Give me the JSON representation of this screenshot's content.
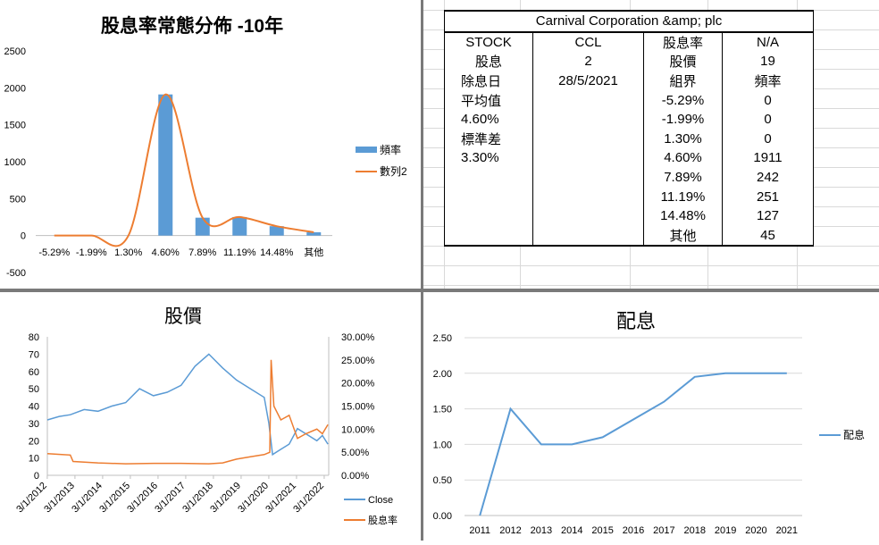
{
  "colors": {
    "blue": "#5B9BD5",
    "orange": "#ED7D31",
    "grid": "#d9d9d9",
    "axis": "#bfbfbf"
  },
  "chart_data": [
    {
      "id": "dist",
      "type": "bar",
      "title": "股息率常態分佈 -10年",
      "categories": [
        "-5.29%",
        "-1.99%",
        "1.30%",
        "4.60%",
        "7.89%",
        "11.19%",
        "14.48%",
        "其他"
      ],
      "series": [
        {
          "name": "頻率",
          "type": "bar",
          "values": [
            0,
            0,
            0,
            1911,
            242,
            251,
            127,
            45
          ]
        },
        {
          "name": "數列2",
          "type": "smooth-line",
          "values": [
            0,
            0,
            0,
            1911,
            242,
            251,
            127,
            45
          ]
        }
      ],
      "ylim": [
        -500,
        2500
      ],
      "yticks": [
        "-500",
        "0",
        "500",
        "1000",
        "1500",
        "2000",
        "2500"
      ],
      "grid": false,
      "legend": "right"
    },
    {
      "id": "price",
      "type": "line",
      "title": "股價",
      "x_ticks": [
        "3/1/2012",
        "3/1/2013",
        "3/1/2014",
        "3/1/2015",
        "3/1/2016",
        "3/1/2017",
        "3/1/2018",
        "3/1/2019",
        "3/1/2020",
        "3/1/2021",
        "3/1/2022"
      ],
      "y_ticks_left": [
        "0",
        "10",
        "20",
        "30",
        "40",
        "50",
        "60",
        "70",
        "80"
      ],
      "y_ticks_right": [
        "0.00%",
        "5.00%",
        "10.00%",
        "15.00%",
        "20.00%",
        "25.00%",
        "30.00%"
      ],
      "ylim_left": [
        0,
        80
      ],
      "ylim_right": [
        0,
        0.3
      ],
      "series": [
        {
          "name": "Close",
          "axis": "left",
          "points": [
            [
              2012.17,
              32
            ],
            [
              2012.6,
              34
            ],
            [
              2013.0,
              35
            ],
            [
              2013.5,
              38
            ],
            [
              2014.0,
              37
            ],
            [
              2014.5,
              40
            ],
            [
              2015.0,
              42
            ],
            [
              2015.5,
              50
            ],
            [
              2016.0,
              46
            ],
            [
              2016.5,
              48
            ],
            [
              2017.0,
              52
            ],
            [
              2017.5,
              63
            ],
            [
              2018.0,
              70
            ],
            [
              2018.5,
              62
            ],
            [
              2019.0,
              55
            ],
            [
              2019.5,
              50
            ],
            [
              2020.0,
              45
            ],
            [
              2020.17,
              30
            ],
            [
              2020.3,
              12
            ],
            [
              2020.6,
              15
            ],
            [
              2020.9,
              18
            ],
            [
              2021.2,
              27
            ],
            [
              2021.5,
              24
            ],
            [
              2021.9,
              20
            ],
            [
              2022.1,
              23
            ],
            [
              2022.3,
              18
            ]
          ]
        },
        {
          "name": "股息率",
          "axis": "right",
          "points": [
            [
              2012.17,
              0.047
            ],
            [
              2012.7,
              0.045
            ],
            [
              2013.0,
              0.044
            ],
            [
              2013.1,
              0.03
            ],
            [
              2014.0,
              0.027
            ],
            [
              2015.0,
              0.025
            ],
            [
              2016.0,
              0.026
            ],
            [
              2017.0,
              0.026
            ],
            [
              2018.0,
              0.025
            ],
            [
              2018.5,
              0.027
            ],
            [
              2019.0,
              0.035
            ],
            [
              2019.5,
              0.04
            ],
            [
              2020.0,
              0.045
            ],
            [
              2020.2,
              0.05
            ],
            [
              2020.25,
              0.25
            ],
            [
              2020.35,
              0.15
            ],
            [
              2020.6,
              0.12
            ],
            [
              2020.9,
              0.13
            ],
            [
              2021.2,
              0.08
            ],
            [
              2021.5,
              0.09
            ],
            [
              2021.9,
              0.1
            ],
            [
              2022.1,
              0.09
            ],
            [
              2022.3,
              0.11
            ]
          ]
        }
      ],
      "legend": "right"
    },
    {
      "id": "div",
      "type": "line",
      "title": "配息",
      "categories": [
        "2011",
        "2012",
        "2013",
        "2014",
        "2015",
        "2016",
        "2017",
        "2018",
        "2019",
        "2020",
        "2021"
      ],
      "series": [
        {
          "name": "配息",
          "values": [
            0,
            1.5,
            1.0,
            1.0,
            1.1,
            1.35,
            1.6,
            1.95,
            2.0,
            2.0,
            2.0
          ]
        }
      ],
      "ylim": [
        0,
        2.5
      ],
      "yticks": [
        "0.00",
        "0.50",
        "1.00",
        "1.50",
        "2.00",
        "2.50"
      ],
      "grid": true,
      "legend": "right"
    }
  ],
  "stock_table": {
    "title": "Carnival Corporation &amp; plc",
    "rows": [
      [
        "STOCK",
        "CCL",
        "股息率",
        "N/A"
      ],
      [
        "股息",
        "2",
        "股價",
        "19"
      ],
      [
        "除息日",
        "28/5/2021",
        "組界",
        "頻率"
      ],
      [
        "平均值",
        "",
        "-5.29%",
        "0"
      ],
      [
        "4.60%",
        "",
        "-1.99%",
        "0"
      ],
      [
        "標準差",
        "",
        "1.30%",
        "0"
      ],
      [
        "3.30%",
        "",
        "4.60%",
        "1911"
      ],
      [
        "",
        "",
        "7.89%",
        "242"
      ],
      [
        "",
        "",
        "11.19%",
        "251"
      ],
      [
        "",
        "",
        "14.48%",
        "127"
      ],
      [
        "",
        "",
        "其他",
        "45"
      ]
    ]
  }
}
